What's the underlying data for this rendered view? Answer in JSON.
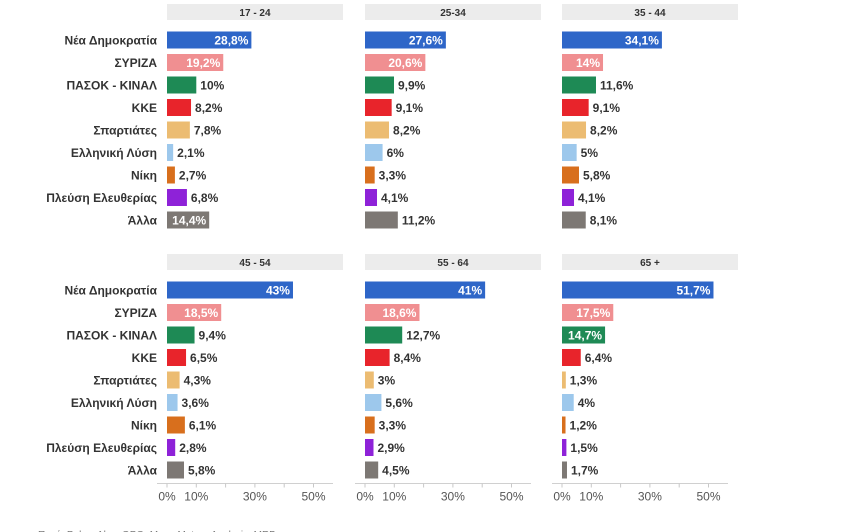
{
  "chart_data": {
    "type": "bar",
    "orientation": "horizontal",
    "categories": [
      "Νέα Δημοκρατία",
      "ΣΥΡΙΖΑ",
      "ΠΑΣΟΚ - ΚΙΝΑΛ",
      "ΚΚΕ",
      "Σπαρτιάτες",
      "Ελληνική Λύση",
      "Νίκη",
      "Πλεύση Ελευθερίας",
      "Άλλα"
    ],
    "colors": [
      "#2e66c8",
      "#f08f91",
      "#1e8a55",
      "#e8242b",
      "#ecbc72",
      "#9dc8ec",
      "#d86f1d",
      "#8e22d8",
      "#7d7874"
    ],
    "xlim": [
      0,
      55
    ],
    "xticks": [
      0,
      10,
      30,
      50
    ],
    "xtick_labels": [
      "0%",
      "10%",
      "30%",
      "50%"
    ],
    "panels": [
      {
        "title": "17 - 24",
        "values": [
          28.8,
          19.2,
          10,
          8.2,
          7.8,
          2.1,
          2.7,
          6.8,
          14.4
        ],
        "labels": [
          "28,8%",
          "19,2%",
          "10%",
          "8,2%",
          "7,8%",
          "2,1%",
          "2,7%",
          "6,8%",
          "14,4%"
        ]
      },
      {
        "title": "25-34",
        "values": [
          27.6,
          20.6,
          9.9,
          9.1,
          8.2,
          6,
          3.3,
          4.1,
          11.2
        ],
        "labels": [
          "27,6%",
          "20,6%",
          "9,9%",
          "9,1%",
          "8,2%",
          "6%",
          "3,3%",
          "4,1%",
          "11,2%"
        ]
      },
      {
        "title": "35 - 44",
        "values": [
          34.1,
          14,
          11.6,
          9.1,
          8.2,
          5,
          5.8,
          4.1,
          8.1
        ],
        "labels": [
          "34,1%",
          "14%",
          "11,6%",
          "9,1%",
          "8,2%",
          "5%",
          "5,8%",
          "4,1%",
          "8,1%"
        ]
      },
      {
        "title": "45 - 54",
        "values": [
          43,
          18.5,
          9.4,
          6.5,
          4.3,
          3.6,
          6.1,
          2.8,
          5.8
        ],
        "labels": [
          "43%",
          "18,5%",
          "9,4%",
          "6,5%",
          "4,3%",
          "3,6%",
          "6,1%",
          "2,8%",
          "5,8%"
        ]
      },
      {
        "title": "55 - 64",
        "values": [
          41,
          18.6,
          12.7,
          8.4,
          3,
          5.6,
          3.3,
          2.9,
          4.5
        ],
        "labels": [
          "41%",
          "18,6%",
          "12,7%",
          "8,4%",
          "3%",
          "5,6%",
          "3,3%",
          "2,9%",
          "4,5%"
        ]
      },
      {
        "title": "65 +",
        "values": [
          51.7,
          17.5,
          14.7,
          6.4,
          1.3,
          4,
          1.2,
          1.5,
          1.7
        ],
        "labels": [
          "51,7%",
          "17,5%",
          "14,7%",
          "6,4%",
          "1,3%",
          "4%",
          "1,2%",
          "1,5%",
          "1,7%"
        ]
      }
    ],
    "source": "Πηγή: Pulse, Alco, GPO, Marc, Metron Analysis, MRB"
  }
}
